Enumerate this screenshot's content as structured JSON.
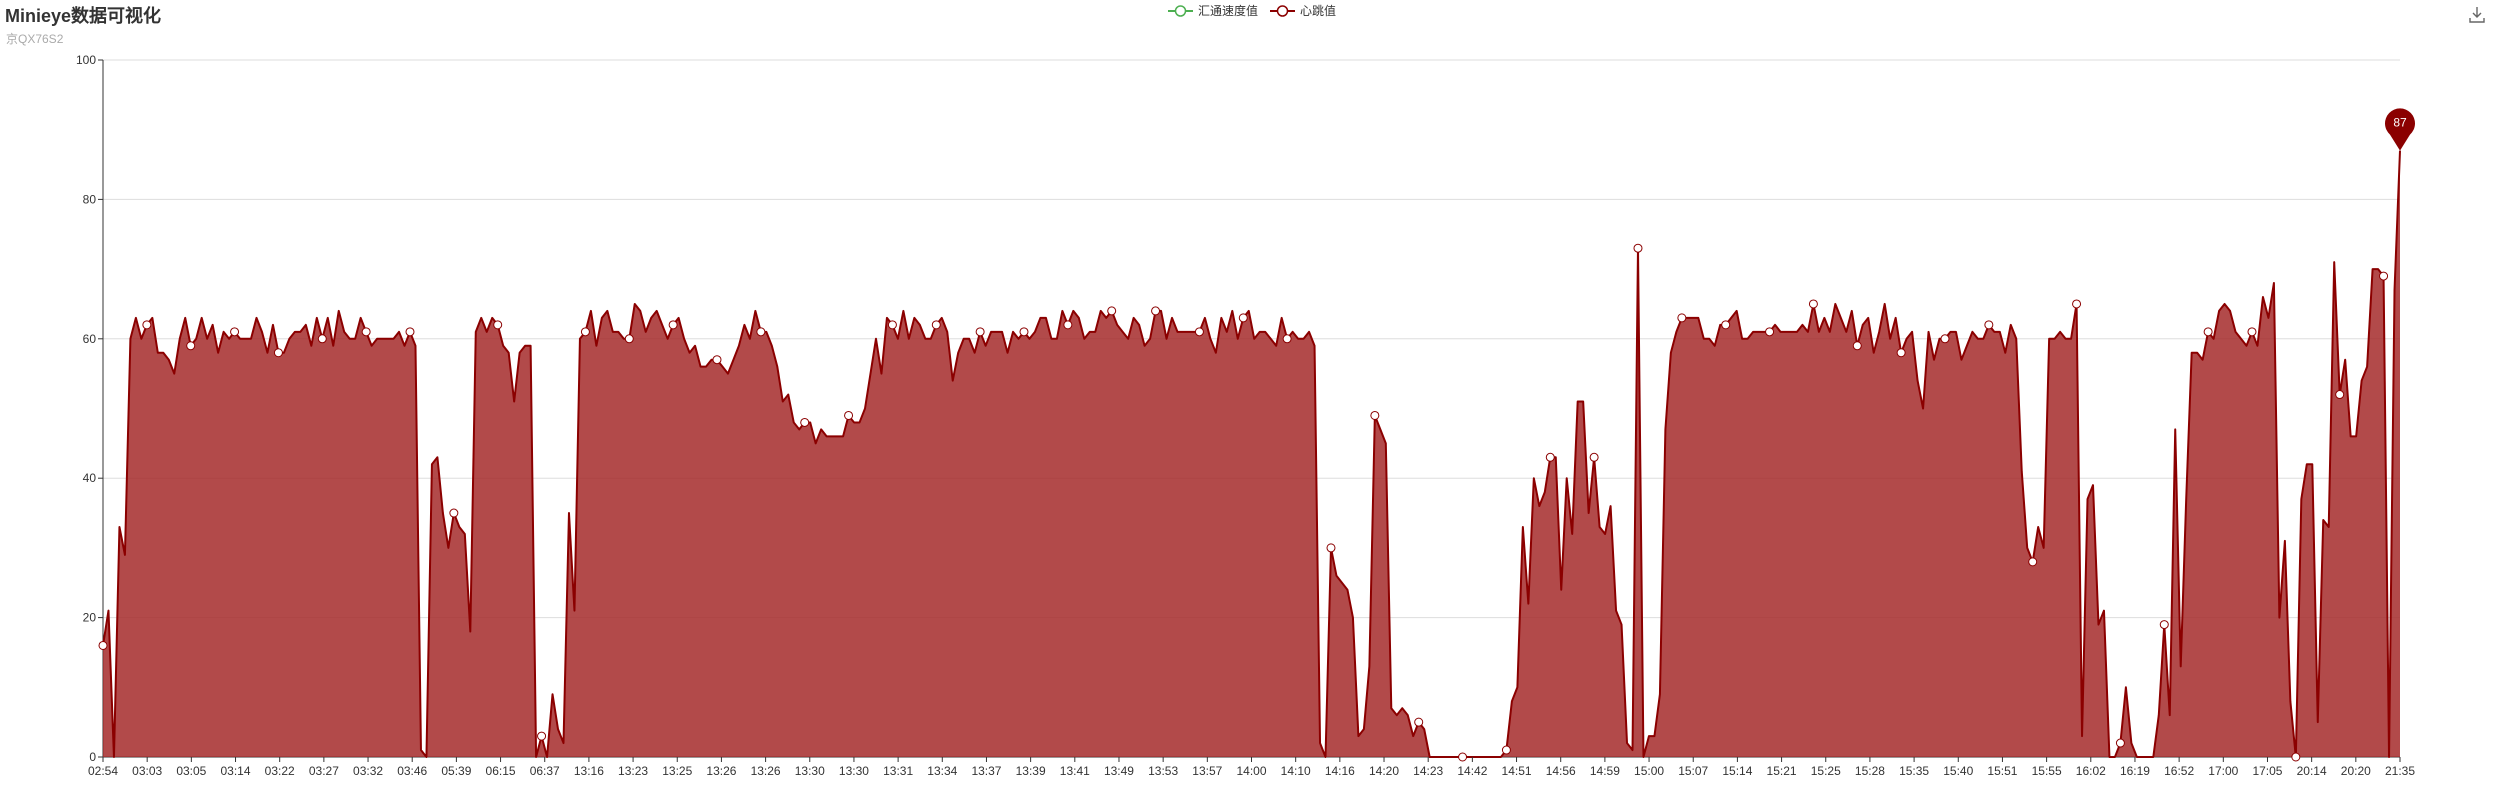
{
  "title": "Minieye数据可视化",
  "subtitle": "京QX76S2",
  "legend": [
    {
      "name": "汇通速度值",
      "color": "#4caf50"
    },
    {
      "name": "心跳值",
      "color": "#8b0000"
    }
  ],
  "toolbar": {
    "download_icon": "download-icon"
  },
  "colors": {
    "series_line": "#8b0000",
    "series_fill": "#a52a2a",
    "grid": "#dddddd",
    "axis": "#333333"
  },
  "chart_data": {
    "type": "area",
    "title": "Minieye数据可视化",
    "subtitle": "京QX76S2",
    "xlabel": "",
    "ylabel": "",
    "ylim": [
      0,
      100
    ],
    "yticks": [
      0,
      20,
      40,
      60,
      80,
      100
    ],
    "grid": true,
    "legend_position": "top-center",
    "x_tick_labels": [
      "02:54",
      "03:03",
      "03:05",
      "03:14",
      "03:22",
      "03:27",
      "03:32",
      "03:46",
      "05:39",
      "06:15",
      "06:37",
      "13:16",
      "13:23",
      "13:25",
      "13:26",
      "13:26",
      "13:30",
      "13:30",
      "13:31",
      "13:34",
      "13:37",
      "13:39",
      "13:41",
      "13:49",
      "13:53",
      "13:57",
      "14:00",
      "14:10",
      "14:16",
      "14:20",
      "14:23",
      "14:42",
      "14:51",
      "14:56",
      "14:59",
      "15:00",
      "15:07",
      "15:14",
      "15:21",
      "15:25",
      "15:28",
      "15:35",
      "15:40",
      "15:51",
      "15:55",
      "16:02",
      "16:19",
      "16:52",
      "17:00",
      "17:05",
      "20:14",
      "20:20",
      "21:35"
    ],
    "series": [
      {
        "name": "汇通速度值",
        "color": "#4caf50",
        "values": []
      },
      {
        "name": "心跳值",
        "color": "#8b0000",
        "values": [
          16,
          21,
          0,
          33,
          29,
          60,
          63,
          60,
          62,
          63,
          58,
          58,
          57,
          55,
          60,
          63,
          59,
          60,
          63,
          60,
          62,
          58,
          61,
          60,
          61,
          60,
          60,
          60,
          63,
          61,
          58,
          62,
          58,
          58,
          60,
          61,
          61,
          62,
          59,
          63,
          60,
          63,
          59,
          64,
          61,
          60,
          60,
          63,
          61,
          59,
          60,
          60,
          60,
          60,
          61,
          59,
          61,
          59,
          1,
          0,
          42,
          43,
          35,
          30,
          35,
          33,
          32,
          18,
          61,
          63,
          61,
          63,
          62,
          59,
          58,
          51,
          58,
          59,
          59,
          0,
          3,
          0,
          9,
          4,
          2,
          35,
          21,
          60,
          61,
          64,
          59,
          63,
          64,
          61,
          61,
          60,
          60,
          65,
          64,
          61,
          63,
          64,
          62,
          60,
          62,
          63,
          60,
          58,
          59,
          56,
          56,
          57,
          57,
          56,
          55,
          57,
          59,
          62,
          60,
          64,
          61,
          61,
          59,
          56,
          51,
          52,
          48,
          47,
          48,
          48,
          45,
          47,
          46,
          46,
          46,
          46,
          49,
          48,
          48,
          50,
          55,
          60,
          55,
          63,
          62,
          60,
          64,
          60,
          63,
          62,
          60,
          60,
          62,
          63,
          61,
          54,
          58,
          60,
          60,
          58,
          61,
          59,
          61,
          61,
          61,
          58,
          61,
          60,
          61,
          60,
          61,
          63,
          63,
          60,
          60,
          64,
          62,
          64,
          63,
          60,
          61,
          61,
          64,
          63,
          64,
          62,
          61,
          60,
          63,
          62,
          59,
          60,
          64,
          64,
          60,
          63,
          61,
          61,
          61,
          61,
          61,
          63,
          60,
          58,
          63,
          61,
          64,
          60,
          63,
          64,
          60,
          61,
          61,
          60,
          59,
          63,
          60,
          61,
          60,
          60,
          61,
          59,
          2,
          0,
          30,
          26,
          25,
          24,
          20,
          3,
          4,
          13,
          49,
          47,
          45,
          7,
          6,
          7,
          6,
          3,
          5,
          4,
          0,
          0,
          0,
          0,
          0,
          0,
          0,
          0,
          0,
          0,
          0,
          0,
          0,
          0,
          1,
          8,
          10,
          33,
          22,
          40,
          36,
          38,
          43,
          43,
          24,
          40,
          32,
          51,
          51,
          35,
          43,
          33,
          32,
          36,
          21,
          19,
          2,
          1,
          73,
          0,
          3,
          3,
          9,
          47,
          58,
          61,
          63,
          63,
          63,
          63,
          60,
          60,
          59,
          62,
          62,
          63,
          64,
          60,
          60,
          61,
          61,
          61,
          61,
          62,
          61,
          61,
          61,
          61,
          62,
          61,
          65,
          61,
          63,
          61,
          65,
          63,
          61,
          64,
          59,
          62,
          63,
          58,
          61,
          65,
          60,
          63,
          58,
          60,
          61,
          54,
          50,
          61,
          57,
          60,
          60,
          61,
          61,
          57,
          59,
          61,
          60,
          60,
          62,
          61,
          61,
          58,
          62,
          60,
          41,
          30,
          28,
          33,
          30,
          60,
          60,
          61,
          60,
          60,
          65,
          3,
          37,
          39,
          19,
          21,
          0,
          0,
          2,
          10,
          2,
          0,
          0,
          0,
          0,
          6,
          19,
          6,
          47,
          13,
          37,
          58,
          58,
          57,
          61,
          60,
          64,
          65,
          64,
          61,
          60,
          59,
          61,
          59,
          66,
          63,
          68,
          20,
          31,
          8,
          0,
          37,
          42,
          42,
          5,
          34,
          33,
          71,
          52,
          57,
          46,
          46,
          54,
          56,
          70,
          70,
          69,
          0,
          67,
          87
        ]
      }
    ],
    "marked_points": [
      {
        "label": "87",
        "value": 87,
        "type": "max"
      }
    ]
  }
}
